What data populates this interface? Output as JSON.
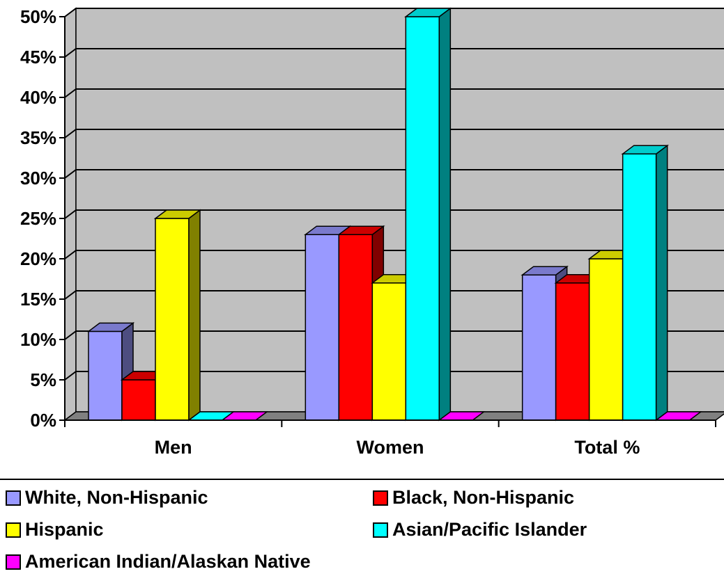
{
  "chart_data": {
    "type": "bar",
    "categories": [
      "Men",
      "Women",
      "Total %"
    ],
    "series": [
      {
        "name": "White, Non-Hispanic",
        "values": [
          11,
          23,
          18
        ],
        "color": "#9999ff"
      },
      {
        "name": "Black, Non-Hispanic",
        "values": [
          5,
          23,
          17
        ],
        "color": "#ff0000"
      },
      {
        "name": "Hispanic",
        "values": [
          25,
          17,
          20
        ],
        "color": "#ffff00"
      },
      {
        "name": "Asian/Pacific Islander",
        "values": [
          0,
          50,
          33
        ],
        "color": "#00ffff"
      },
      {
        "name": "American Indian/Alaskan Native",
        "values": [
          0,
          0,
          0
        ],
        "color": "#ff00ff"
      }
    ],
    "y_ticks": [
      "0%",
      "5%",
      "10%",
      "15%",
      "20%",
      "25%",
      "30%",
      "35%",
      "40%",
      "45%",
      "50%"
    ],
    "ylim": [
      0,
      50
    ],
    "grid": true,
    "style": "3d-clustered-column",
    "wall_color": "#c0c0c0",
    "legend_position": "bottom"
  }
}
